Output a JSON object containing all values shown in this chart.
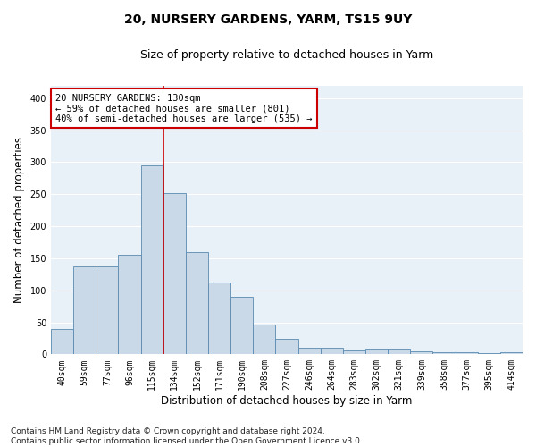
{
  "title": "20, NURSERY GARDENS, YARM, TS15 9UY",
  "subtitle": "Size of property relative to detached houses in Yarm",
  "xlabel": "Distribution of detached houses by size in Yarm",
  "ylabel": "Number of detached properties",
  "footnote": "Contains HM Land Registry data © Crown copyright and database right 2024.\nContains public sector information licensed under the Open Government Licence v3.0.",
  "categories": [
    "40sqm",
    "59sqm",
    "77sqm",
    "96sqm",
    "115sqm",
    "134sqm",
    "152sqm",
    "171sqm",
    "190sqm",
    "208sqm",
    "227sqm",
    "246sqm",
    "264sqm",
    "283sqm",
    "302sqm",
    "321sqm",
    "339sqm",
    "358sqm",
    "377sqm",
    "395sqm",
    "414sqm"
  ],
  "values": [
    40,
    138,
    138,
    155,
    295,
    252,
    160,
    112,
    90,
    46,
    24,
    10,
    10,
    6,
    9,
    9,
    4,
    3,
    3,
    2,
    3
  ],
  "bar_color": "#c9d9e8",
  "bar_edge_color": "#5a8ab0",
  "vline_index": 4,
  "vline_color": "#cc0000",
  "annotation_text": "20 NURSERY GARDENS: 130sqm\n← 59% of detached houses are smaller (801)\n40% of semi-detached houses are larger (535) →",
  "annotation_box_color": "#cc0000",
  "ylim": [
    0,
    420
  ],
  "yticks": [
    0,
    50,
    100,
    150,
    200,
    250,
    300,
    350,
    400
  ],
  "background_color": "#e8f0f8",
  "grid_color": "#ffffff",
  "figure_bg": "#ffffff",
  "title_fontsize": 10,
  "subtitle_fontsize": 9,
  "axis_label_fontsize": 8.5,
  "tick_fontsize": 7,
  "annotation_fontsize": 7.5,
  "footnote_fontsize": 6.5
}
